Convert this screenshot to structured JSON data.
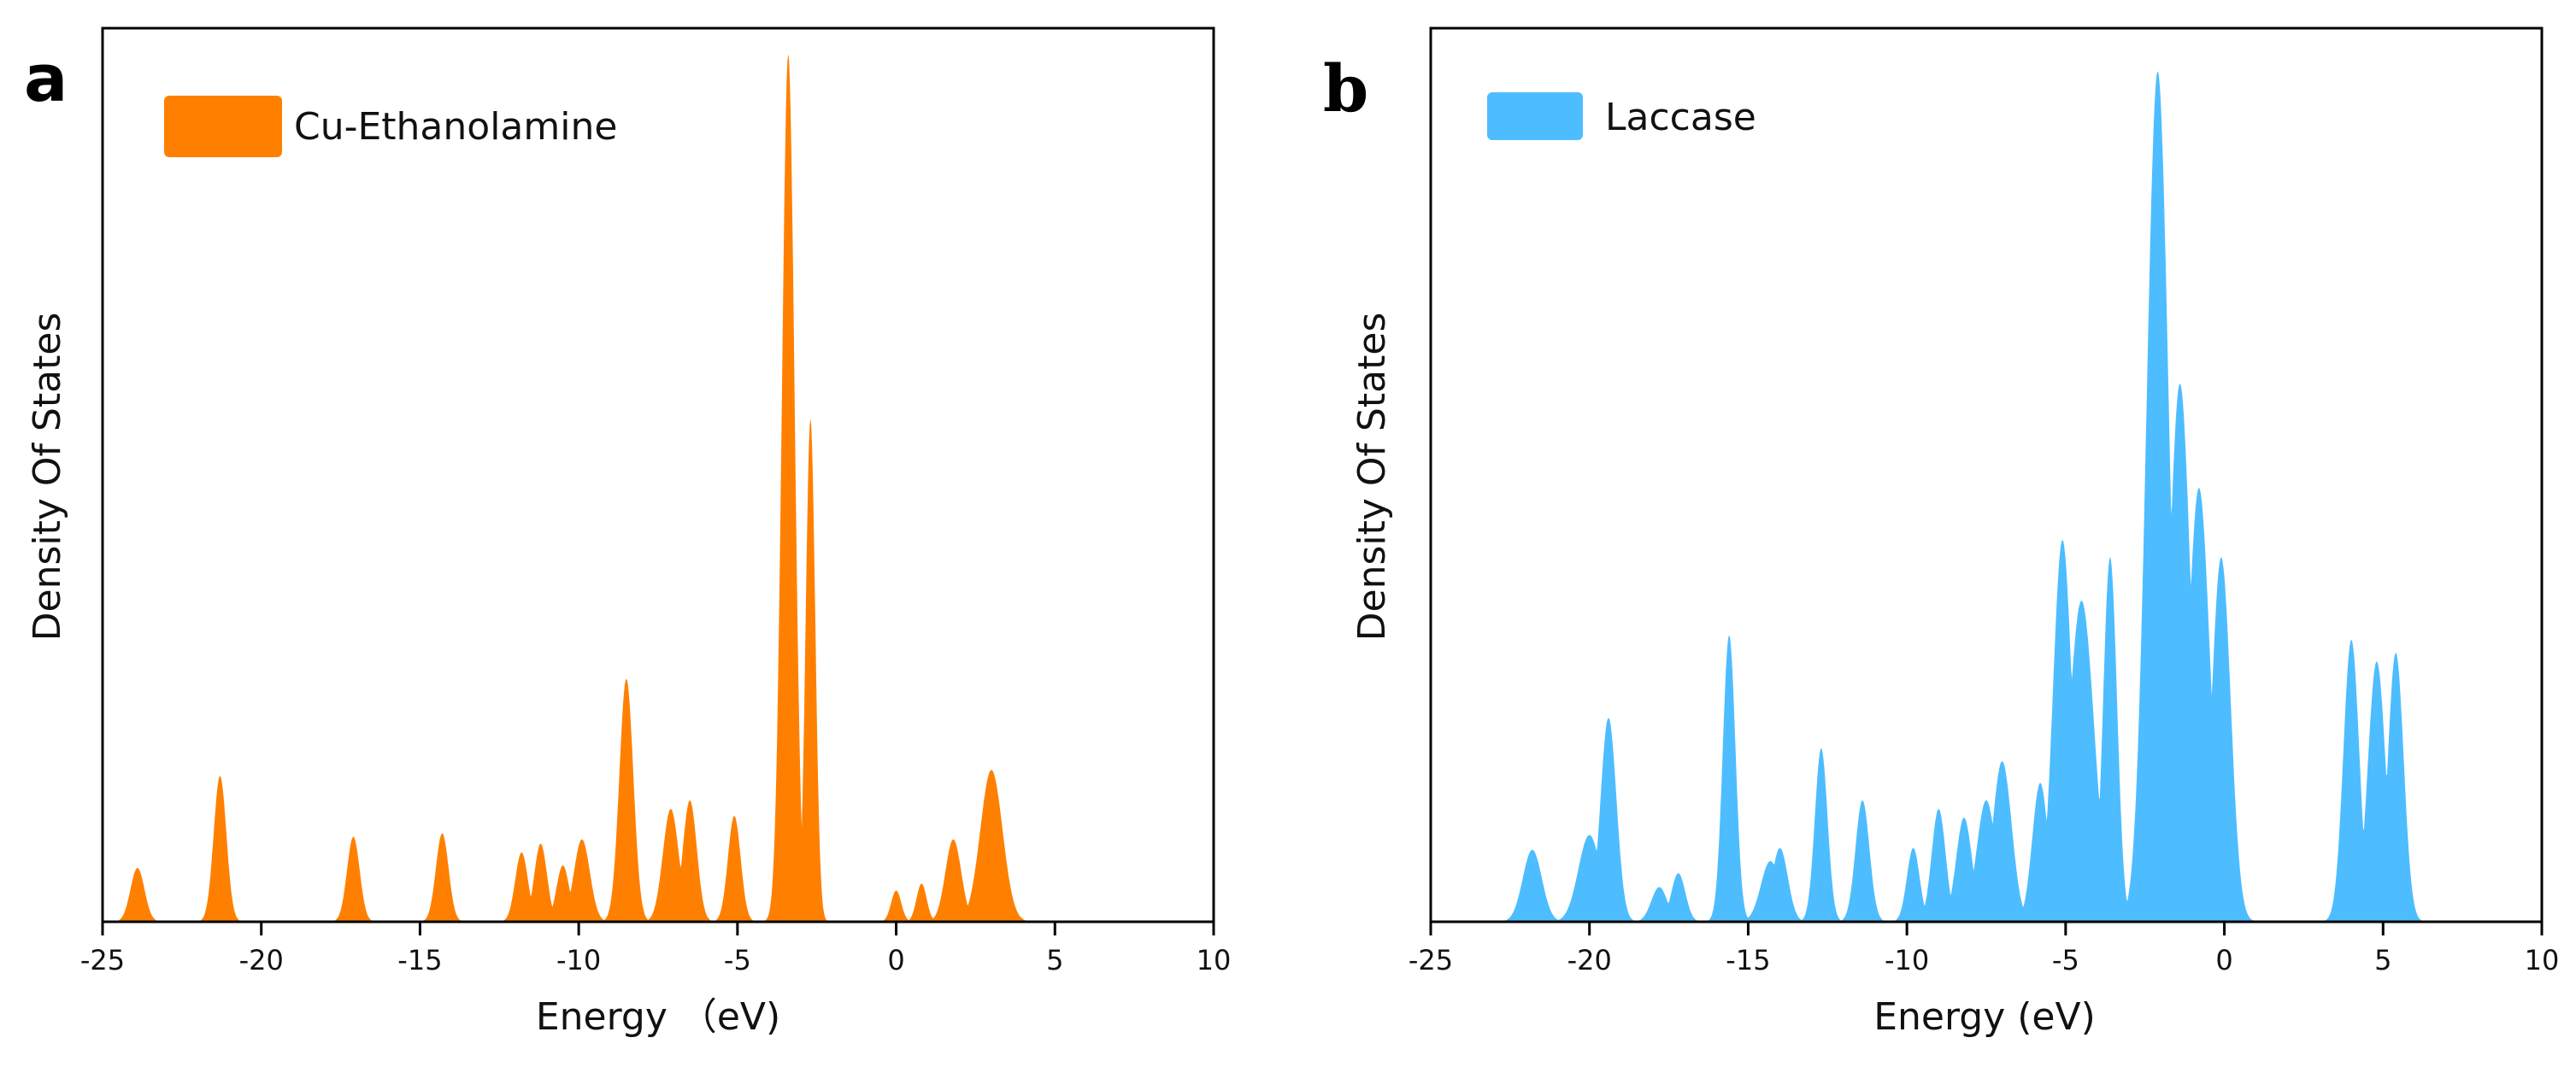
{
  "chart_data": [
    {
      "type": "area",
      "panel_letter": "a",
      "title": "",
      "xlabel": "Energy （eV)",
      "ylabel": "Density Of States",
      "xlim": [
        -25,
        10
      ],
      "ylim": [
        0,
        1.0
      ],
      "xticks": [
        -25,
        -20,
        -15,
        -10,
        -5,
        0,
        5,
        10
      ],
      "xtick_labels": [
        "-25",
        "-20",
        "-15",
        "-10",
        "-5",
        "0",
        "5",
        "10"
      ],
      "grid": false,
      "legend": {
        "label": "Cu-Ethanolamine",
        "position": "top-left"
      },
      "series": [
        {
          "name": "Cu-Ethanolamine",
          "color": "#FF8000",
          "peaks": [
            {
              "center": -23.9,
              "height": 0.062,
              "width": 0.22
            },
            {
              "center": -21.3,
              "height": 0.168,
              "width": 0.2
            },
            {
              "center": -17.1,
              "height": 0.098,
              "width": 0.2
            },
            {
              "center": -14.3,
              "height": 0.102,
              "width": 0.2
            },
            {
              "center": -11.8,
              "height": 0.08,
              "width": 0.2
            },
            {
              "center": -11.2,
              "height": 0.09,
              "width": 0.2
            },
            {
              "center": -10.5,
              "height": 0.065,
              "width": 0.2
            },
            {
              "center": -9.9,
              "height": 0.095,
              "width": 0.25
            },
            {
              "center": -8.5,
              "height": 0.28,
              "width": 0.22
            },
            {
              "center": -7.1,
              "height": 0.13,
              "width": 0.25
            },
            {
              "center": -6.5,
              "height": 0.14,
              "width": 0.22
            },
            {
              "center": -5.1,
              "height": 0.122,
              "width": 0.2
            },
            {
              "center": -3.4,
              "height": 1.0,
              "width": 0.2
            },
            {
              "center": -2.7,
              "height": 0.58,
              "width": 0.15
            },
            {
              "center": 0.0,
              "height": 0.036,
              "width": 0.16
            },
            {
              "center": 0.8,
              "height": 0.044,
              "width": 0.16
            },
            {
              "center": 1.8,
              "height": 0.095,
              "width": 0.25
            },
            {
              "center": 3.0,
              "height": 0.175,
              "width": 0.35
            }
          ]
        }
      ]
    },
    {
      "type": "area",
      "panel_letter": "b",
      "title": "",
      "xlabel": "Energy (eV)",
      "ylabel": "Density Of States",
      "xlim": [
        -25,
        10
      ],
      "ylim": [
        0,
        1.0
      ],
      "xticks": [
        -25,
        -20,
        -15,
        -10,
        -5,
        0,
        5,
        10
      ],
      "xtick_labels": [
        "-25",
        "-20",
        "-15",
        "-10",
        "-5",
        "0",
        "5",
        "10"
      ],
      "grid": false,
      "legend": {
        "label": "Laccase",
        "position": "top-left"
      },
      "series": [
        {
          "name": "Laccase",
          "color": "#4DBDFF",
          "peaks": [
            {
              "center": -21.8,
              "height": 0.083,
              "width": 0.3
            },
            {
              "center": -20.0,
              "height": 0.1,
              "width": 0.35
            },
            {
              "center": -19.4,
              "height": 0.235,
              "width": 0.25
            },
            {
              "center": -17.8,
              "height": 0.04,
              "width": 0.25
            },
            {
              "center": -17.2,
              "height": 0.056,
              "width": 0.22
            },
            {
              "center": -15.6,
              "height": 0.33,
              "width": 0.2
            },
            {
              "center": -14.3,
              "height": 0.07,
              "width": 0.3
            },
            {
              "center": -14.0,
              "height": 0.085,
              "width": 0.25
            },
            {
              "center": -12.7,
              "height": 0.2,
              "width": 0.2
            },
            {
              "center": -11.4,
              "height": 0.14,
              "width": 0.22
            },
            {
              "center": -9.8,
              "height": 0.085,
              "width": 0.2
            },
            {
              "center": -9.0,
              "height": 0.13,
              "width": 0.22
            },
            {
              "center": -8.2,
              "height": 0.12,
              "width": 0.25
            },
            {
              "center": -7.5,
              "height": 0.14,
              "width": 0.3
            },
            {
              "center": -7.0,
              "height": 0.185,
              "width": 0.3
            },
            {
              "center": -5.8,
              "height": 0.16,
              "width": 0.25
            },
            {
              "center": -5.1,
              "height": 0.44,
              "width": 0.3
            },
            {
              "center": -4.5,
              "height": 0.37,
              "width": 0.4
            },
            {
              "center": -3.6,
              "height": 0.42,
              "width": 0.22
            },
            {
              "center": -2.1,
              "height": 0.98,
              "width": 0.35
            },
            {
              "center": -1.4,
              "height": 0.62,
              "width": 0.35
            },
            {
              "center": -0.8,
              "height": 0.5,
              "width": 0.35
            },
            {
              "center": -0.1,
              "height": 0.42,
              "width": 0.3
            },
            {
              "center": 4.0,
              "height": 0.325,
              "width": 0.25
            },
            {
              "center": 4.8,
              "height": 0.3,
              "width": 0.28
            },
            {
              "center": 5.4,
              "height": 0.31,
              "width": 0.25
            }
          ]
        }
      ]
    }
  ]
}
